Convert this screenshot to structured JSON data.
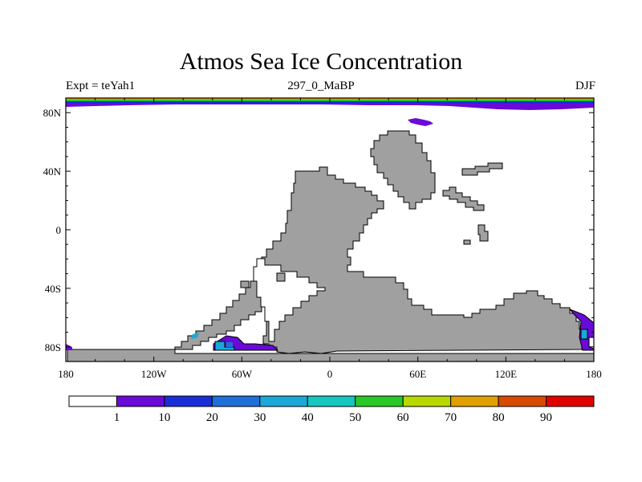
{
  "title": "Atmos Sea Ice Concentration",
  "subtitle_left": "Expt = teYah1",
  "subtitle_center": "297_0_MaBP",
  "subtitle_right": "DJF",
  "map": {
    "projection": "cylindrical equidistant",
    "lon_range": [
      -180,
      180
    ],
    "lat_range": [
      -90,
      90
    ],
    "x_ticks": [
      "180",
      "120W",
      "60W",
      "0",
      "60E",
      "120E",
      "180"
    ],
    "x_tick_values": [
      -180,
      -120,
      -60,
      0,
      60,
      120,
      180
    ],
    "y_ticks": [
      "80N",
      "40N",
      "0",
      "40S",
      "80S"
    ],
    "y_tick_values": [
      80,
      40,
      0,
      -40,
      -80
    ],
    "land_color": "#a0a0a0",
    "ocean_color": "#ffffff"
  },
  "colorbar": {
    "labels": [
      "1",
      "10",
      "20",
      "30",
      "40",
      "50",
      "60",
      "70",
      "80",
      "90"
    ],
    "colors": [
      "#ffffff",
      "#6a0ad8",
      "#1a2ed8",
      "#1f6fd8",
      "#1aa8d8",
      "#14c8c0",
      "#28c828",
      "#b8d800",
      "#e0a000",
      "#d84a00",
      "#e00000"
    ]
  }
}
